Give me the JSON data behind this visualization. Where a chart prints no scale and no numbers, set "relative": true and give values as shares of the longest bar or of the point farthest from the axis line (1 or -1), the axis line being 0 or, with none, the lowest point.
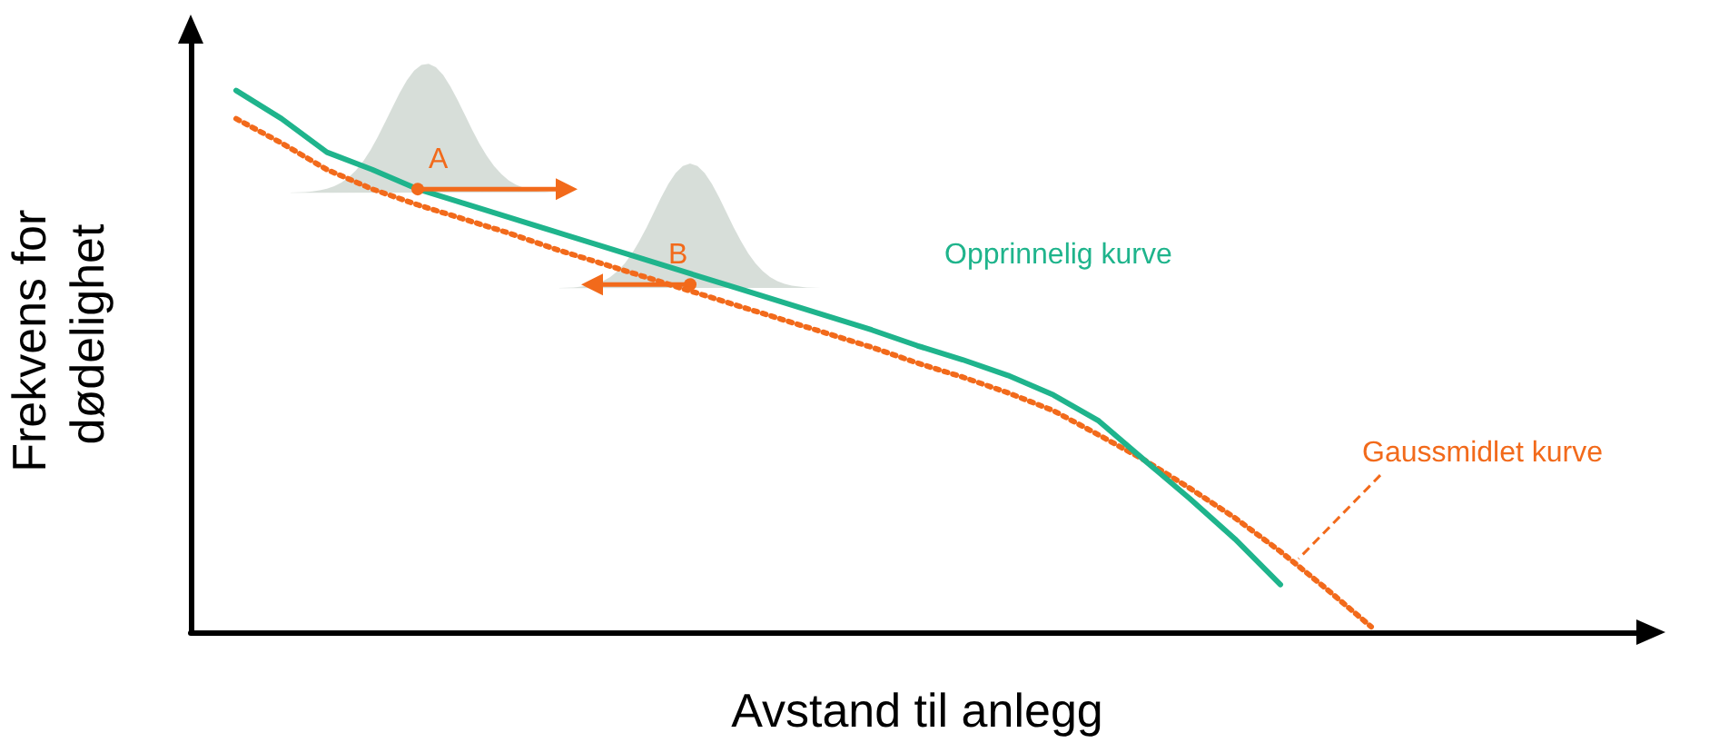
{
  "chart_data": {
    "type": "line",
    "relative": true,
    "xlabel": "Avstand til anlegg",
    "ylabel": "Frekvens for dødelighet",
    "categories": [
      null,
      null,
      null,
      null,
      null,
      null,
      null,
      null,
      null,
      null,
      null,
      null,
      null,
      null,
      null,
      null,
      null,
      null,
      null,
      null,
      null,
      null,
      null,
      null,
      null,
      null,
      null,
      null,
      null,
      null,
      null,
      null,
      null
    ],
    "series": [
      {
        "name": "Opprinnelig kurve",
        "color": "#1fb48c",
        "line_style": "solid",
        "values": [
          null,
          1.0,
          0.948,
          0.886,
          0.854,
          0.818,
          0.792,
          0.766,
          0.74,
          0.714,
          0.688,
          0.662,
          0.636,
          0.61,
          0.584,
          0.558,
          0.529,
          0.503,
          0.474,
          0.438,
          0.39,
          0.318,
          0.247,
          0.172,
          0.088,
          null,
          null,
          null,
          null,
          null,
          null,
          null,
          null
        ]
      },
      {
        "name": "Gaussmidlet kurve",
        "color": "#f26a1b",
        "line_style": "dotted",
        "values": [
          null,
          0.948,
          0.903,
          0.854,
          0.818,
          0.789,
          0.763,
          0.737,
          0.708,
          0.682,
          0.656,
          0.63,
          0.604,
          0.578,
          0.552,
          0.526,
          0.497,
          0.471,
          0.442,
          0.409,
          0.364,
          0.318,
          0.266,
          0.211,
          0.149,
          0.081,
          0.01,
          null,
          null,
          null,
          null,
          null,
          null
        ]
      }
    ],
    "annotations": [
      "A",
      "B"
    ],
    "grid": false,
    "legend": false,
    "marker": "none"
  }
}
